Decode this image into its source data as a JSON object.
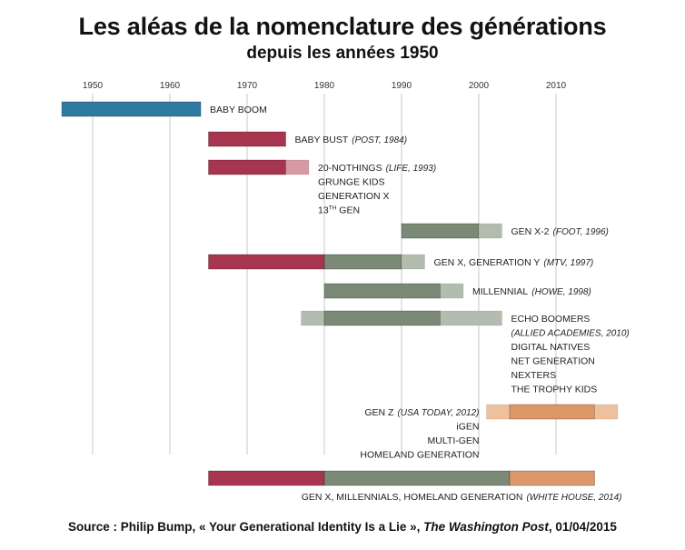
{
  "title": "Les aléas de la nomenclature des générations",
  "subtitle": "depuis les années 1950",
  "source": {
    "prefix": "Source : Philip Bump, « Your Generational Identity Is a Lie », ",
    "publication": "The Washington Post",
    "suffix": ", 01/04/2015"
  },
  "colors": {
    "boom": "#2f7aa0",
    "red": "#a8354f",
    "red_light": "#d69aa2",
    "green": "#7b8a76",
    "green_light": "#b3bdaf",
    "orange": "#dc9869",
    "orange_light": "#eec19e",
    "grid": "#c8c8c8"
  },
  "chart_data": {
    "type": "timeline",
    "title": "Les aléas de la nomenclature des générations",
    "subtitle": "depuis les années 1950",
    "xlim": [
      1946,
      2018
    ],
    "x_ticks": [
      1950,
      1960,
      1970,
      1980,
      1990,
      2000,
      2010
    ],
    "grid": true,
    "rows": [
      {
        "label_lines": [
          "BABY BOOM"
        ],
        "source": "",
        "label_side": "right",
        "segments": [
          {
            "start": 1946,
            "end": 1964,
            "color": "boom"
          }
        ]
      },
      {
        "label_lines": [
          "BABY BUST"
        ],
        "source": "(POST, 1984)",
        "label_side": "right",
        "segments": [
          {
            "start": 1965,
            "end": 1975,
            "color": "red"
          }
        ]
      },
      {
        "label_lines": [
          "20-NOTHINGS",
          "GRUNGE KIDS",
          "GENERATION X",
          "13TH GEN"
        ],
        "source": "(LIFE, 1993)",
        "label_side": "right",
        "segments": [
          {
            "start": 1965,
            "end": 1975,
            "color": "red"
          },
          {
            "start": 1975,
            "end": 1978,
            "color": "red_light"
          }
        ]
      },
      {
        "label_lines": [
          "GEN X-2"
        ],
        "source": "(FOOT, 1996)",
        "label_side": "right",
        "segments": [
          {
            "start": 1990,
            "end": 2000,
            "color": "green"
          },
          {
            "start": 2000,
            "end": 2003,
            "color": "green_light"
          }
        ]
      },
      {
        "label_lines": [
          "GEN X, GENERATION Y"
        ],
        "source": "(MTV, 1997)",
        "label_side": "right",
        "segments": [
          {
            "start": 1965,
            "end": 1980,
            "color": "red"
          },
          {
            "start": 1980,
            "end": 1990,
            "color": "green"
          },
          {
            "start": 1990,
            "end": 1993,
            "color": "green_light"
          }
        ]
      },
      {
        "label_lines": [
          "MILLENNIAL"
        ],
        "source": "(HOWE, 1998)",
        "label_side": "right",
        "segments": [
          {
            "start": 1980,
            "end": 1995,
            "color": "green"
          },
          {
            "start": 1995,
            "end": 1998,
            "color": "green_light"
          }
        ]
      },
      {
        "label_lines": [
          "ECHO BOOMERS",
          "DIGITAL NATIVES",
          "NET GENERATION",
          "NEXTERS",
          "THE TROPHY KIDS"
        ],
        "source": "(ALLIED ACADEMIES, 2010)",
        "source_on_own_line": true,
        "label_side": "right",
        "segments": [
          {
            "start": 1977,
            "end": 1980,
            "color": "green_light"
          },
          {
            "start": 1980,
            "end": 1995,
            "color": "green"
          },
          {
            "start": 1995,
            "end": 2003,
            "color": "green_light"
          }
        ]
      },
      {
        "label_lines": [
          "GEN Z",
          "iGEN",
          "MULTI-GEN",
          "HOMELAND GENERATION"
        ],
        "source": "(USA TODAY, 2012)",
        "label_side": "left",
        "segments": [
          {
            "start": 2001,
            "end": 2004,
            "color": "orange_light"
          },
          {
            "start": 2004,
            "end": 2015,
            "color": "orange"
          },
          {
            "start": 2015,
            "end": 2018,
            "color": "orange_light"
          }
        ]
      },
      {
        "label_lines": [
          "GEN X, MILLENNIALS, HOMELAND GENERATION"
        ],
        "source": "(WHITE HOUSE, 2014)",
        "label_side": "below",
        "segments": [
          {
            "start": 1965,
            "end": 1980,
            "color": "red"
          },
          {
            "start": 1980,
            "end": 2004,
            "color": "green"
          },
          {
            "start": 2004,
            "end": 2015,
            "color": "orange"
          }
        ]
      }
    ]
  }
}
